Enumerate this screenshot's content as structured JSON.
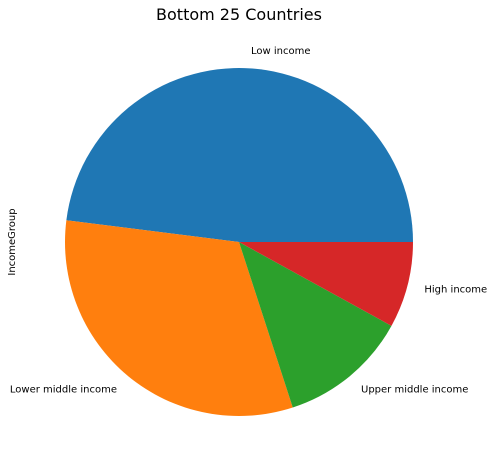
{
  "chart_data": {
    "type": "pie",
    "title": "Bottom 25 Countries",
    "ylabel": "IncomeGroup",
    "categories": [
      "Low income",
      "Lower middle income",
      "Upper middle income",
      "High income"
    ],
    "values": [
      12,
      8,
      3,
      2
    ],
    "colors": [
      "#1f77b4",
      "#ff7f0e",
      "#2ca02c",
      "#d62728"
    ],
    "start_angle_deg": 0,
    "direction": "counterclockwise"
  }
}
